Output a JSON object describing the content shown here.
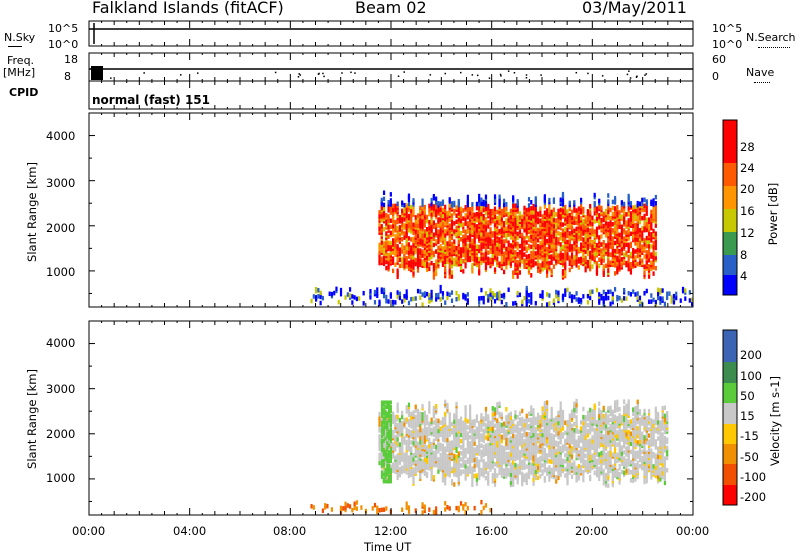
{
  "header": {
    "station": "Falkland Islands (fitACF)",
    "beam": "Beam 02",
    "date": "03/May/2011"
  },
  "top_panels": {
    "nsky_label": "N.Sky",
    "nsky_ticks": [
      "10^5",
      "10^0"
    ],
    "nsearch_label": "N.Search",
    "nsearch_ticks": [
      "10^5",
      "10^0"
    ],
    "freq_label": "Freq.",
    "freq_unit": "[MHz]",
    "freq_ticks": [
      "18",
      "8"
    ],
    "nave_label": "Nave",
    "nave_ticks": [
      "60",
      "0"
    ],
    "cpid_label": "CPID",
    "cpid_value": "normal (fast) 151"
  },
  "colors": {
    "power": [
      "#0000ff",
      "#2860c8",
      "#3a9a50",
      "#c8c800",
      "#ff9600",
      "#ff5a00",
      "#ff0000"
    ],
    "velocity_pos": [
      "#2828a0",
      "#3c64b4",
      "#3c8c50",
      "#5acc3c"
    ],
    "velocity_neutral": "#c8c8c8",
    "velocity_neg": [
      "#ffc800",
      "#f09000",
      "#f05000",
      "#ff0000"
    ],
    "line": "#000000",
    "dots": "#000000"
  },
  "chart_data": [
    {
      "type": "heatmap",
      "name": "Power",
      "ylabel": "Slant Range [km]",
      "y_ticks": [
        "1000",
        "2000",
        "3000",
        "4000"
      ],
      "ylim": [
        200,
        4500
      ],
      "xlim_hours": [
        0,
        24
      ],
      "colorbar_label": "Power [dB]",
      "colorbar_ticks": [
        "4",
        "8",
        "12",
        "16",
        "20",
        "24",
        "28"
      ],
      "regions": [
        {
          "x_start_hour": 11.5,
          "x_end_hour": 22.5,
          "y_low_km": 800,
          "y_high_km": 2700,
          "dominant_level": "high"
        },
        {
          "x_start_hour": 8.8,
          "x_end_hour": 24,
          "y_low_km": 200,
          "y_high_km": 600,
          "dominant_level": "low"
        }
      ]
    },
    {
      "type": "heatmap",
      "name": "Velocity",
      "ylabel": "Slant Range [km]",
      "y_ticks": [
        "1000",
        "2000",
        "3000",
        "4000"
      ],
      "ylim": [
        200,
        4500
      ],
      "xlim_hours": [
        0,
        24
      ],
      "xlabel": "Time UT",
      "x_ticks": [
        "00:00",
        "04:00",
        "08:00",
        "12:00",
        "16:00",
        "20:00",
        "00:00"
      ],
      "colorbar_label": "Velocity [m s-1]",
      "colorbar_ticks": [
        "200",
        "100",
        "50",
        "15",
        "-15",
        "-50",
        "-100",
        "-200"
      ],
      "regions": [
        {
          "x_start_hour": 11.5,
          "x_end_hour": 23,
          "y_low_km": 800,
          "y_high_km": 2700,
          "dominant_range": "-15 to 15"
        },
        {
          "x_start_hour": 8.8,
          "x_end_hour": 16,
          "y_low_km": 200,
          "y_high_km": 450,
          "dominant_range": "-15 to -100"
        }
      ]
    }
  ]
}
